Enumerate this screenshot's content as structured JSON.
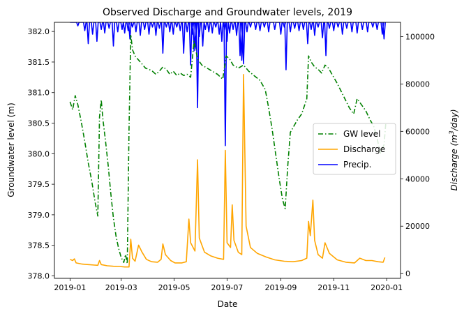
{
  "chart_data": {
    "type": "line",
    "title": "Observed Discharge and Groundwater levels, 2019",
    "xlabel": "Date",
    "ylabel_left": "Groundwater level (m)",
    "ylabel_right_prefix": "Discharge (",
    "ylabel_right_unit": "m",
    "ylabel_right_exp": "3",
    "ylabel_right_suffix": "/day)",
    "x_ticks": [
      "2019-01",
      "2019-03",
      "2019-05",
      "2019-07",
      "2019-09",
      "2019-11",
      "2020-01"
    ],
    "y_left_ticks": [
      "378.0",
      "378.5",
      "379.0",
      "379.5",
      "380.0",
      "380.5",
      "381.0",
      "381.5",
      "382.0"
    ],
    "y_right_ticks": [
      "0",
      "20000",
      "40000",
      "60000",
      "80000",
      "100000"
    ],
    "xlim": [
      "2018-12-14",
      "2020-01-17"
    ],
    "ylim_left": [
      377.96,
      382.15
    ],
    "ylim_right": [
      -2000,
      106000
    ],
    "grid": false,
    "legend_position": "center-right",
    "series": [
      {
        "name": "GW level",
        "axis": "left",
        "color": "#008000",
        "style": "dashdot",
        "points": [
          [
            "2019-01-01",
            380.85
          ],
          [
            "2019-01-04",
            380.72
          ],
          [
            "2019-01-07",
            380.95
          ],
          [
            "2019-01-10",
            380.8
          ],
          [
            "2019-01-14",
            380.52
          ],
          [
            "2019-01-18",
            380.2
          ],
          [
            "2019-01-22",
            379.85
          ],
          [
            "2019-01-26",
            379.55
          ],
          [
            "2019-01-30",
            379.2
          ],
          [
            "2019-02-02",
            378.98
          ],
          [
            "2019-02-04",
            380.6
          ],
          [
            "2019-02-06",
            380.88
          ],
          [
            "2019-02-08",
            380.55
          ],
          [
            "2019-02-11",
            380.2
          ],
          [
            "2019-02-14",
            379.8
          ],
          [
            "2019-02-17",
            379.35
          ],
          [
            "2019-02-20",
            378.95
          ],
          [
            "2019-02-23",
            378.65
          ],
          [
            "2019-02-26",
            378.45
          ],
          [
            "2019-03-01",
            378.3
          ],
          [
            "2019-03-04",
            378.22
          ],
          [
            "2019-03-06",
            378.35
          ],
          [
            "2019-03-08",
            378.2
          ],
          [
            "2019-03-10",
            380.4
          ],
          [
            "2019-03-12",
            381.95
          ],
          [
            "2019-03-14",
            381.7
          ],
          [
            "2019-03-17",
            381.6
          ],
          [
            "2019-03-20",
            381.55
          ],
          [
            "2019-03-23",
            381.5
          ],
          [
            "2019-03-26",
            381.45
          ],
          [
            "2019-03-29",
            381.4
          ],
          [
            "2019-04-02",
            381.38
          ],
          [
            "2019-04-06",
            381.35
          ],
          [
            "2019-04-10",
            381.3
          ],
          [
            "2019-04-14",
            381.35
          ],
          [
            "2019-04-18",
            381.42
          ],
          [
            "2019-04-22",
            381.38
          ],
          [
            "2019-04-26",
            381.3
          ],
          [
            "2019-04-30",
            381.35
          ],
          [
            "2019-05-04",
            381.28
          ],
          [
            "2019-05-08",
            381.32
          ],
          [
            "2019-05-12",
            381.28
          ],
          [
            "2019-05-16",
            381.3
          ],
          [
            "2019-05-20",
            381.25
          ],
          [
            "2019-05-24",
            381.85
          ],
          [
            "2019-05-28",
            381.55
          ],
          [
            "2019-06-02",
            381.45
          ],
          [
            "2019-06-08",
            381.4
          ],
          [
            "2019-06-14",
            381.35
          ],
          [
            "2019-06-20",
            381.3
          ],
          [
            "2019-06-26",
            381.22
          ],
          [
            "2019-06-30",
            381.6
          ],
          [
            "2019-07-04",
            381.55
          ],
          [
            "2019-07-08",
            381.45
          ],
          [
            "2019-07-14",
            381.4
          ],
          [
            "2019-07-20",
            381.45
          ],
          [
            "2019-07-26",
            381.35
          ],
          [
            "2019-08-01",
            381.28
          ],
          [
            "2019-08-08",
            381.2
          ],
          [
            "2019-08-14",
            381.05
          ],
          [
            "2019-08-18",
            380.75
          ],
          [
            "2019-08-22",
            380.4
          ],
          [
            "2019-08-26",
            380.0
          ],
          [
            "2019-08-30",
            379.6
          ],
          [
            "2019-09-03",
            379.25
          ],
          [
            "2019-09-06",
            379.1
          ],
          [
            "2019-09-09",
            379.8
          ],
          [
            "2019-09-12",
            380.35
          ],
          [
            "2019-09-16",
            380.45
          ],
          [
            "2019-09-20",
            380.55
          ],
          [
            "2019-09-25",
            380.65
          ],
          [
            "2019-10-01",
            380.9
          ],
          [
            "2019-10-03",
            381.6
          ],
          [
            "2019-10-06",
            381.5
          ],
          [
            "2019-10-10",
            381.42
          ],
          [
            "2019-10-14",
            381.38
          ],
          [
            "2019-10-18",
            381.32
          ],
          [
            "2019-10-22",
            381.45
          ],
          [
            "2019-10-26",
            381.4
          ],
          [
            "2019-10-30",
            381.3
          ],
          [
            "2019-11-05",
            381.15
          ],
          [
            "2019-11-12",
            380.95
          ],
          [
            "2019-11-19",
            380.75
          ],
          [
            "2019-11-24",
            380.65
          ],
          [
            "2019-11-28",
            380.9
          ],
          [
            "2019-12-03",
            380.8
          ],
          [
            "2019-12-08",
            380.7
          ],
          [
            "2019-12-13",
            380.55
          ],
          [
            "2019-12-17",
            380.45
          ],
          [
            "2019-12-21",
            380.25
          ],
          [
            "2019-12-25",
            380.0
          ],
          [
            "2019-12-29",
            380.15
          ],
          [
            "2019-12-31",
            380.5
          ]
        ]
      },
      {
        "name": "Discharge",
        "axis": "right",
        "color": "#FFA500",
        "style": "solid",
        "points": [
          [
            "2019-01-01",
            6000
          ],
          [
            "2019-01-04",
            5500
          ],
          [
            "2019-01-06",
            6200
          ],
          [
            "2019-01-08",
            4500
          ],
          [
            "2019-01-15",
            4000
          ],
          [
            "2019-01-22",
            3800
          ],
          [
            "2019-01-29",
            3600
          ],
          [
            "2019-02-02",
            3500
          ],
          [
            "2019-02-04",
            5500
          ],
          [
            "2019-02-06",
            3800
          ],
          [
            "2019-02-13",
            3300
          ],
          [
            "2019-02-20",
            3100
          ],
          [
            "2019-02-27",
            3000
          ],
          [
            "2019-03-05",
            2800
          ],
          [
            "2019-03-10",
            2800
          ],
          [
            "2019-03-12",
            14500
          ],
          [
            "2019-03-14",
            6500
          ],
          [
            "2019-03-17",
            5200
          ],
          [
            "2019-03-21",
            12000
          ],
          [
            "2019-03-25",
            9000
          ],
          [
            "2019-03-30",
            6000
          ],
          [
            "2019-04-05",
            5000
          ],
          [
            "2019-04-12",
            4800
          ],
          [
            "2019-04-16",
            6000
          ],
          [
            "2019-04-18",
            12500
          ],
          [
            "2019-04-21",
            8000
          ],
          [
            "2019-04-27",
            5500
          ],
          [
            "2019-05-02",
            4500
          ],
          [
            "2019-05-10",
            4500
          ],
          [
            "2019-05-15",
            5000
          ],
          [
            "2019-05-18",
            23000
          ],
          [
            "2019-05-20",
            13000
          ],
          [
            "2019-05-25",
            9500
          ],
          [
            "2019-05-28",
            48000
          ],
          [
            "2019-05-30",
            15000
          ],
          [
            "2019-06-05",
            9000
          ],
          [
            "2019-06-12",
            7500
          ],
          [
            "2019-06-20",
            6500
          ],
          [
            "2019-06-27",
            6000
          ],
          [
            "2019-06-29",
            52000
          ],
          [
            "2019-07-01",
            13000
          ],
          [
            "2019-07-05",
            11000
          ],
          [
            "2019-07-07",
            29000
          ],
          [
            "2019-07-09",
            14000
          ],
          [
            "2019-07-14",
            9000
          ],
          [
            "2019-07-18",
            8000
          ],
          [
            "2019-07-20",
            84000
          ],
          [
            "2019-07-23",
            20000
          ],
          [
            "2019-07-28",
            11000
          ],
          [
            "2019-08-05",
            8500
          ],
          [
            "2019-08-15",
            7000
          ],
          [
            "2019-08-25",
            5800
          ],
          [
            "2019-09-05",
            5200
          ],
          [
            "2019-09-15",
            5000
          ],
          [
            "2019-09-25",
            5500
          ],
          [
            "2019-10-01",
            6500
          ],
          [
            "2019-10-03",
            22000
          ],
          [
            "2019-10-05",
            16000
          ],
          [
            "2019-10-08",
            31000
          ],
          [
            "2019-10-10",
            14000
          ],
          [
            "2019-10-14",
            8000
          ],
          [
            "2019-10-19",
            6500
          ],
          [
            "2019-10-22",
            13000
          ],
          [
            "2019-10-27",
            8500
          ],
          [
            "2019-11-05",
            5800
          ],
          [
            "2019-11-15",
            4800
          ],
          [
            "2019-11-25",
            4500
          ],
          [
            "2019-12-01",
            6500
          ],
          [
            "2019-12-08",
            5500
          ],
          [
            "2019-12-15",
            5500
          ],
          [
            "2019-12-22",
            5000
          ],
          [
            "2019-12-28",
            4800
          ],
          [
            "2019-12-30",
            6800
          ]
        ]
      },
      {
        "name": "Precip.",
        "axis": "right",
        "color": "#0000FF",
        "style": "solid",
        "baseline": 106000,
        "spikes": [
          [
            "2019-01-10",
            104500
          ],
          [
            "2019-01-18",
            102500
          ],
          [
            "2019-01-22",
            97000
          ],
          [
            "2019-01-27",
            101000
          ],
          [
            "2019-02-01",
            98000
          ],
          [
            "2019-02-06",
            103000
          ],
          [
            "2019-02-10",
            101500
          ],
          [
            "2019-02-15",
            103500
          ],
          [
            "2019-02-20",
            96000
          ],
          [
            "2019-02-25",
            102000
          ],
          [
            "2019-03-02",
            103000
          ],
          [
            "2019-03-05",
            101500
          ],
          [
            "2019-03-09",
            102500
          ],
          [
            "2019-03-11",
            99000
          ],
          [
            "2019-03-14",
            104000
          ],
          [
            "2019-03-18",
            102000
          ],
          [
            "2019-03-23",
            100500
          ],
          [
            "2019-03-28",
            103000
          ],
          [
            "2019-04-02",
            101000
          ],
          [
            "2019-04-06",
            104000
          ],
          [
            "2019-04-10",
            100500
          ],
          [
            "2019-04-14",
            103500
          ],
          [
            "2019-04-18",
            93000
          ],
          [
            "2019-04-22",
            104000
          ],
          [
            "2019-04-26",
            102000
          ],
          [
            "2019-04-30",
            101000
          ],
          [
            "2019-05-04",
            104000
          ],
          [
            "2019-05-08",
            102500
          ],
          [
            "2019-05-12",
            93000
          ],
          [
            "2019-05-16",
            102000
          ],
          [
            "2019-05-20",
            88000
          ],
          [
            "2019-05-22",
            101000
          ],
          [
            "2019-05-24",
            94000
          ],
          [
            "2019-05-26",
            95000
          ],
          [
            "2019-05-28",
            70000
          ],
          [
            "2019-05-30",
            100000
          ],
          [
            "2019-06-03",
            96000
          ],
          [
            "2019-06-06",
            103000
          ],
          [
            "2019-06-10",
            102000
          ],
          [
            "2019-06-14",
            101500
          ],
          [
            "2019-06-18",
            104000
          ],
          [
            "2019-06-22",
            101000
          ],
          [
            "2019-06-25",
            98000
          ],
          [
            "2019-06-28",
            103000
          ],
          [
            "2019-06-29",
            54000
          ],
          [
            "2019-07-01",
            98000
          ],
          [
            "2019-07-04",
            101500
          ],
          [
            "2019-07-08",
            103000
          ],
          [
            "2019-07-12",
            100500
          ],
          [
            "2019-07-16",
            92000
          ],
          [
            "2019-07-18",
            90000
          ],
          [
            "2019-07-20",
            88500
          ],
          [
            "2019-07-24",
            102000
          ],
          [
            "2019-07-28",
            104000
          ],
          [
            "2019-08-03",
            103000
          ],
          [
            "2019-08-08",
            102500
          ],
          [
            "2019-08-13",
            104000
          ],
          [
            "2019-08-18",
            102000
          ],
          [
            "2019-08-25",
            103000
          ],
          [
            "2019-09-01",
            101000
          ],
          [
            "2019-09-05",
            104000
          ],
          [
            "2019-09-07",
            86000
          ],
          [
            "2019-09-12",
            102000
          ],
          [
            "2019-09-17",
            103500
          ],
          [
            "2019-09-22",
            102500
          ],
          [
            "2019-09-27",
            103000
          ],
          [
            "2019-10-02",
            97000
          ],
          [
            "2019-10-06",
            103000
          ],
          [
            "2019-10-10",
            100500
          ],
          [
            "2019-10-14",
            104000
          ],
          [
            "2019-10-19",
            99500
          ],
          [
            "2019-10-23",
            92000
          ],
          [
            "2019-10-27",
            103500
          ],
          [
            "2019-11-01",
            102500
          ],
          [
            "2019-11-06",
            104000
          ],
          [
            "2019-11-11",
            101000
          ],
          [
            "2019-11-16",
            103500
          ],
          [
            "2019-11-22",
            102000
          ],
          [
            "2019-11-28",
            101500
          ],
          [
            "2019-12-04",
            103000
          ],
          [
            "2019-12-10",
            102000
          ],
          [
            "2019-12-16",
            104000
          ],
          [
            "2019-12-21",
            103000
          ],
          [
            "2019-12-27",
            101000
          ],
          [
            "2019-12-29",
            99000
          ]
        ]
      }
    ]
  }
}
